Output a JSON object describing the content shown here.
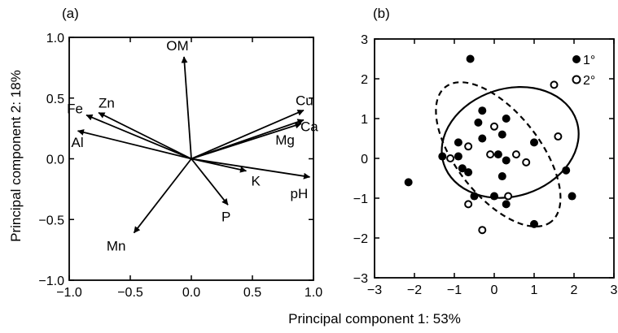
{
  "figure": {
    "xlabel": "Principal component 1: 53%",
    "ylabel": "Principal component 2: 18%"
  },
  "chart_data": [
    {
      "type": "biplot",
      "panel_label": "(a)",
      "xlim": [
        -1.0,
        1.0
      ],
      "ylim": [
        -1.0,
        1.0
      ],
      "x_ticks": [
        "−1.0",
        "−0.5",
        "0.0",
        "0.5",
        "1.0"
      ],
      "y_ticks": [
        "1.0",
        "0.5",
        "0.0",
        "−0.5",
        "−1.0"
      ],
      "x_tick_values": [
        -1.0,
        -0.5,
        0.0,
        0.5,
        1.0
      ],
      "y_tick_values": [
        1.0,
        0.5,
        0.0,
        -0.5,
        -1.0
      ],
      "grid": false,
      "vectors": [
        {
          "label": "OM",
          "x": -0.06,
          "y": 0.84
        },
        {
          "label": "Fe",
          "x": -0.86,
          "y": 0.36
        },
        {
          "label": "Zn",
          "x": -0.76,
          "y": 0.38
        },
        {
          "label": "Al",
          "x": -0.93,
          "y": 0.23
        },
        {
          "label": "Cu",
          "x": 0.92,
          "y": 0.4
        },
        {
          "label": "Ca",
          "x": 0.92,
          "y": 0.32
        },
        {
          "label": "Mg",
          "x": 0.9,
          "y": 0.29
        },
        {
          "label": "K",
          "x": 0.45,
          "y": -0.1
        },
        {
          "label": "pH",
          "x": 0.97,
          "y": -0.15
        },
        {
          "label": "P",
          "x": 0.3,
          "y": -0.38
        },
        {
          "label": "Mn",
          "x": -0.47,
          "y": -0.61
        }
      ]
    },
    {
      "type": "scatter",
      "panel_label": "(b)",
      "xlim": [
        -3,
        3
      ],
      "ylim": [
        -3,
        3
      ],
      "x_ticks": [
        "−3",
        "−2",
        "−1",
        "0",
        "1",
        "2",
        "3"
      ],
      "y_ticks": [
        "3",
        "2",
        "1",
        "0",
        "−1",
        "−2",
        "−3"
      ],
      "x_tick_values": [
        -3,
        -2,
        -1,
        0,
        1,
        2,
        3
      ],
      "y_tick_values": [
        3,
        2,
        1,
        0,
        -1,
        -2,
        -3
      ],
      "grid": false,
      "legend_position": "top-right",
      "series": [
        {
          "name": "1°",
          "marker": "filled-circle",
          "points": [
            [
              -0.6,
              2.5
            ],
            [
              -0.3,
              1.2
            ],
            [
              -0.4,
              0.9
            ],
            [
              0.3,
              1.0
            ],
            [
              -0.3,
              0.5
            ],
            [
              0.2,
              0.6
            ],
            [
              -0.9,
              0.4
            ],
            [
              -1.3,
              0.05
            ],
            [
              -0.9,
              0.05
            ],
            [
              -0.8,
              -0.25
            ],
            [
              -0.65,
              -0.35
            ],
            [
              0.1,
              0.1
            ],
            [
              0.3,
              -0.05
            ],
            [
              1.0,
              0.4
            ],
            [
              0.2,
              -0.45
            ],
            [
              0.0,
              -0.95
            ],
            [
              -0.5,
              -0.95
            ],
            [
              0.3,
              -1.15
            ],
            [
              1.0,
              -1.65
            ],
            [
              1.8,
              -0.3
            ],
            [
              1.95,
              -0.95
            ],
            [
              -2.15,
              -0.6
            ]
          ]
        },
        {
          "name": "2°",
          "marker": "open-circle",
          "points": [
            [
              -0.65,
              0.3
            ],
            [
              0.0,
              0.8
            ],
            [
              -0.1,
              0.1
            ],
            [
              0.55,
              0.1
            ],
            [
              -1.1,
              0.0
            ],
            [
              0.8,
              -0.1
            ],
            [
              1.6,
              0.55
            ],
            [
              1.5,
              1.85
            ],
            [
              0.35,
              -0.95
            ],
            [
              -0.65,
              -1.15
            ],
            [
              -0.3,
              -1.8
            ]
          ]
        }
      ],
      "ellipses": [
        {
          "series": "1°",
          "style": "solid",
          "cx": 0.4,
          "cy": 0.4,
          "rx": 1.75,
          "ry": 1.35,
          "angle_deg": -18
        },
        {
          "series": "2°",
          "style": "dashed",
          "cx": 0.1,
          "cy": 0.1,
          "rx": 2.15,
          "ry": 1.05,
          "angle_deg": 52
        }
      ]
    }
  ]
}
